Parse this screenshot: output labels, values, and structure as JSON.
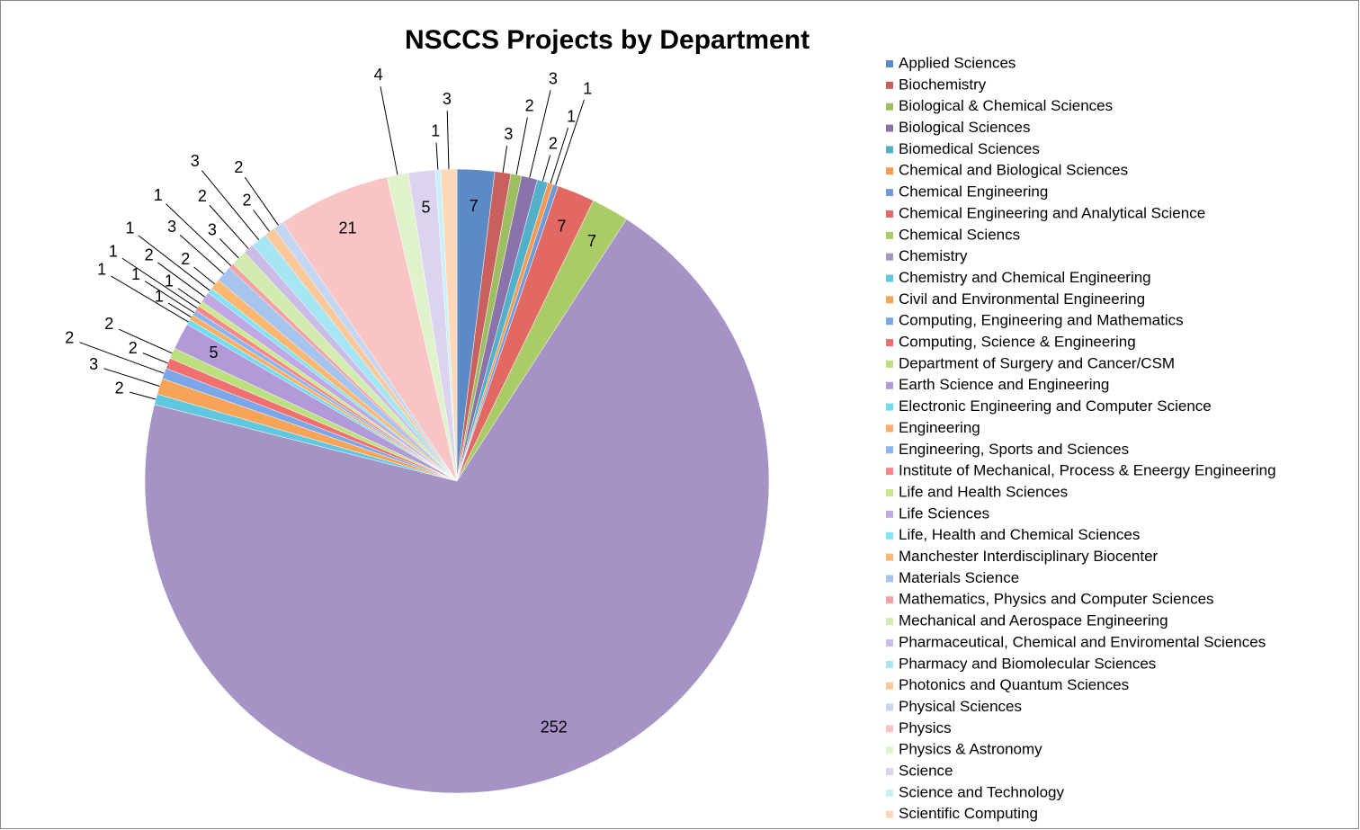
{
  "chart_data": {
    "type": "pie",
    "title": "NSCCS Projects by Department",
    "categories": [
      "Applied Sciences",
      "Biochemistry",
      "Biological & Chemical Sciences",
      "Biological Sciences",
      "Biomedical Sciences",
      "Chemical and Biological Sciences",
      "Chemical Engineering",
      "Chemical Engineering and Analytical Science",
      "Chemical Sciencs",
      "Chemistry",
      "Chemistry and Chemical Engineering",
      "Civil and Environmental Engineering",
      "Computing, Engineering and Mathematics",
      "Computing, Science & Engineering",
      "Department of Surgery and Cancer/CSM",
      "Earth Science and Engineering",
      "Electronic Engineering and Computer Science",
      "Engineering",
      "Engineering, Sports and Sciences",
      "Institute of Mechanical, Process & Eneergy Engineering",
      "Life and Health Sciences",
      "Life Sciences",
      "Life, Health and Chemical Sciences",
      "Manchester Interdisciplinary Biocenter",
      "Materials Science",
      "Mathematics, Physics and Computer Sciences",
      "Mechanical and Aerospace Engineering",
      "Pharmaceutical, Chemical and Enviromental Sciences",
      "Pharmacy and Biomolecular Sciences",
      "Photonics and Quantum Sciences",
      "Physical Sciences",
      "Physics",
      "Physics & Astronomy",
      "Science",
      "Science and Technology",
      "Scientific Computing"
    ],
    "values": [
      7,
      3,
      2,
      3,
      2,
      1,
      1,
      7,
      7,
      252,
      2,
      3,
      2,
      2,
      2,
      5,
      1,
      1,
      1,
      1,
      1,
      2,
      1,
      2,
      3,
      1,
      3,
      2,
      3,
      2,
      2,
      21,
      4,
      5,
      1,
      3
    ],
    "colors": [
      "#5b8ac4",
      "#c9605d",
      "#9dbf62",
      "#8a72ab",
      "#52b0c8",
      "#f59a52",
      "#6e9ad8",
      "#e26864",
      "#a9cc66",
      "#a593c6",
      "#5fc8e0",
      "#f8a458",
      "#7aa6ea",
      "#f07070",
      "#bde07e",
      "#b29ad8",
      "#6fdcf2",
      "#fbae64",
      "#8ab4f2",
      "#f88888",
      "#c8ea8c",
      "#bfa8e4",
      "#80e4f6",
      "#fcb870",
      "#a6c4ee",
      "#f2a2a2",
      "#d2ecb0",
      "#cbbce6",
      "#a6e6f2",
      "#fbc89a",
      "#c4d6f0",
      "#f8c4c4",
      "#e0f2cc",
      "#dcd4ee",
      "#c8f0f8",
      "#fcd8b8"
    ]
  }
}
